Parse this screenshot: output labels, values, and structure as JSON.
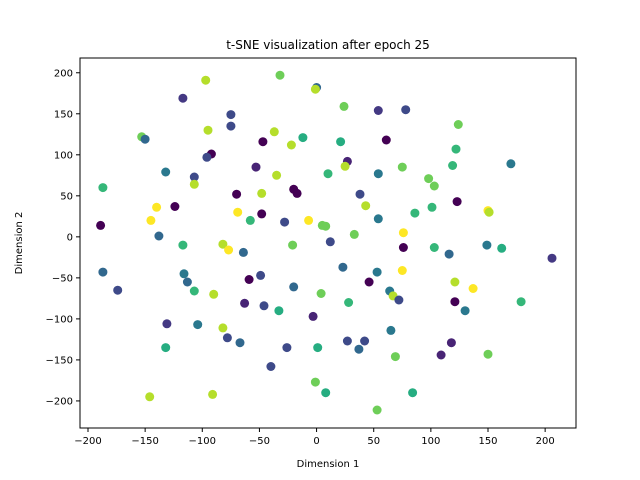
{
  "chart_data": {
    "type": "scatter",
    "title": "t-SNE visualization after epoch 25",
    "xlabel": "Dimension 1",
    "ylabel": "Dimension 2",
    "xlim": [
      -207,
      227
    ],
    "ylim": [
      -233,
      218
    ],
    "xticks": [
      -200,
      -150,
      -100,
      -50,
      0,
      50,
      100,
      150,
      200
    ],
    "yticks": [
      -200,
      -150,
      -100,
      -50,
      0,
      50,
      100,
      150,
      200
    ],
    "grid": false,
    "legend": "none",
    "points": [
      {
        "x": -97,
        "y": 191,
        "c": "#b5de2b"
      },
      {
        "x": -32,
        "y": 197,
        "c": "#6ece58"
      },
      {
        "x": 0,
        "y": 182,
        "c": "#31688e"
      },
      {
        "x": -1,
        "y": 180,
        "c": "#b5de2b"
      },
      {
        "x": -117,
        "y": 169,
        "c": "#443983"
      },
      {
        "x": 24,
        "y": 159,
        "c": "#6ece58"
      },
      {
        "x": -75,
        "y": 149,
        "c": "#3e4a89"
      },
      {
        "x": 54,
        "y": 154,
        "c": "#443983"
      },
      {
        "x": 78,
        "y": 155,
        "c": "#3e4a89"
      },
      {
        "x": -75,
        "y": 135,
        "c": "#3e4a89"
      },
      {
        "x": 124,
        "y": 137,
        "c": "#6ece58"
      },
      {
        "x": -95,
        "y": 130,
        "c": "#b5de2b"
      },
      {
        "x": -37,
        "y": 128,
        "c": "#b5de2b"
      },
      {
        "x": -153,
        "y": 122,
        "c": "#6ece58"
      },
      {
        "x": -150,
        "y": 119,
        "c": "#31688e"
      },
      {
        "x": -12,
        "y": 121,
        "c": "#26ad81"
      },
      {
        "x": -47,
        "y": 116,
        "c": "#440154"
      },
      {
        "x": -22,
        "y": 112,
        "c": "#b5de2b"
      },
      {
        "x": 21,
        "y": 116,
        "c": "#26ad81"
      },
      {
        "x": 61,
        "y": 118,
        "c": "#440154"
      },
      {
        "x": 122,
        "y": 107,
        "c": "#35b779"
      },
      {
        "x": -92,
        "y": 101,
        "c": "#440154"
      },
      {
        "x": -96,
        "y": 97,
        "c": "#3e4a89"
      },
      {
        "x": 27,
        "y": 92,
        "c": "#482475"
      },
      {
        "x": 25,
        "y": 86,
        "c": "#b5de2b"
      },
      {
        "x": -53,
        "y": 85,
        "c": "#482475"
      },
      {
        "x": 75,
        "y": 85,
        "c": "#6ece58"
      },
      {
        "x": 119,
        "y": 87,
        "c": "#35b779"
      },
      {
        "x": 170,
        "y": 89,
        "c": "#2a788e"
      },
      {
        "x": -132,
        "y": 79,
        "c": "#2a788e"
      },
      {
        "x": -35,
        "y": 75,
        "c": "#b5de2b"
      },
      {
        "x": 10,
        "y": 77,
        "c": "#35b779"
      },
      {
        "x": 54,
        "y": 77,
        "c": "#2a788e"
      },
      {
        "x": 98,
        "y": 71,
        "c": "#6ece58"
      },
      {
        "x": -107,
        "y": 73,
        "c": "#3e4a89"
      },
      {
        "x": -107,
        "y": 64,
        "c": "#b5de2b"
      },
      {
        "x": 103,
        "y": 62,
        "c": "#6ece58"
      },
      {
        "x": -187,
        "y": 60,
        "c": "#35b779"
      },
      {
        "x": -20,
        "y": 58,
        "c": "#440154"
      },
      {
        "x": -17,
        "y": 53,
        "c": "#440154"
      },
      {
        "x": -70,
        "y": 52,
        "c": "#440154"
      },
      {
        "x": -48,
        "y": 53,
        "c": "#b5de2b"
      },
      {
        "x": 38,
        "y": 52,
        "c": "#3e4a89"
      },
      {
        "x": 123,
        "y": 43,
        "c": "#440154"
      },
      {
        "x": 43,
        "y": 38,
        "c": "#b5de2b"
      },
      {
        "x": -124,
        "y": 37,
        "c": "#440154"
      },
      {
        "x": -140,
        "y": 36,
        "c": "#fde725"
      },
      {
        "x": 101,
        "y": 36,
        "c": "#35b779"
      },
      {
        "x": 150,
        "y": 32,
        "c": "#fde725"
      },
      {
        "x": -69,
        "y": 30,
        "c": "#fde725"
      },
      {
        "x": -48,
        "y": 28,
        "c": "#440154"
      },
      {
        "x": 86,
        "y": 29,
        "c": "#35b779"
      },
      {
        "x": 151,
        "y": 30,
        "c": "#b5de2b"
      },
      {
        "x": 54,
        "y": 22,
        "c": "#2a788e"
      },
      {
        "x": -145,
        "y": 20,
        "c": "#fde725"
      },
      {
        "x": -58,
        "y": 20,
        "c": "#35b779"
      },
      {
        "x": -28,
        "y": 18,
        "c": "#3e4a89"
      },
      {
        "x": -7,
        "y": 20,
        "c": "#fde725"
      },
      {
        "x": 5,
        "y": 14,
        "c": "#6ece58"
      },
      {
        "x": 8,
        "y": 13,
        "c": "#6ece58"
      },
      {
        "x": -189,
        "y": 14,
        "c": "#440154"
      },
      {
        "x": -138,
        "y": 1,
        "c": "#31688e"
      },
      {
        "x": 33,
        "y": 3,
        "c": "#6ece58"
      },
      {
        "x": 76,
        "y": 5,
        "c": "#fde725"
      },
      {
        "x": 12,
        "y": -6,
        "c": "#3e4a89"
      },
      {
        "x": -117,
        "y": -10,
        "c": "#35b779"
      },
      {
        "x": -82,
        "y": -9,
        "c": "#b5de2b"
      },
      {
        "x": -21,
        "y": -10,
        "c": "#6ece58"
      },
      {
        "x": 76,
        "y": -13,
        "c": "#440154"
      },
      {
        "x": 103,
        "y": -13,
        "c": "#35b779"
      },
      {
        "x": 149,
        "y": -10,
        "c": "#2a788e"
      },
      {
        "x": 162,
        "y": -14,
        "c": "#26ad81"
      },
      {
        "x": -77,
        "y": -16,
        "c": "#fde725"
      },
      {
        "x": -64,
        "y": -19,
        "c": "#31688e"
      },
      {
        "x": 116,
        "y": -21,
        "c": "#31688e"
      },
      {
        "x": 206,
        "y": -26,
        "c": "#443983"
      },
      {
        "x": 23,
        "y": -37,
        "c": "#31688e"
      },
      {
        "x": -187,
        "y": -43,
        "c": "#31688e"
      },
      {
        "x": -116,
        "y": -45,
        "c": "#2a788e"
      },
      {
        "x": -49,
        "y": -47,
        "c": "#3e4a89"
      },
      {
        "x": 53,
        "y": -43,
        "c": "#2a788e"
      },
      {
        "x": 75,
        "y": -41,
        "c": "#fde725"
      },
      {
        "x": -59,
        "y": -52,
        "c": "#440154"
      },
      {
        "x": -113,
        "y": -55,
        "c": "#31688e"
      },
      {
        "x": 46,
        "y": -55,
        "c": "#440154"
      },
      {
        "x": 121,
        "y": -55,
        "c": "#b5de2b"
      },
      {
        "x": -174,
        "y": -65,
        "c": "#3e4a89"
      },
      {
        "x": -20,
        "y": -61,
        "c": "#31688e"
      },
      {
        "x": 137,
        "y": -63,
        "c": "#fde725"
      },
      {
        "x": -107,
        "y": -66,
        "c": "#35b779"
      },
      {
        "x": 64,
        "y": -66,
        "c": "#2a788e"
      },
      {
        "x": -90,
        "y": -70,
        "c": "#b5de2b"
      },
      {
        "x": 4,
        "y": -69,
        "c": "#6ece58"
      },
      {
        "x": 67,
        "y": -72,
        "c": "#b5de2b"
      },
      {
        "x": 72,
        "y": -77,
        "c": "#3e4a89"
      },
      {
        "x": 121,
        "y": -79,
        "c": "#440154"
      },
      {
        "x": 179,
        "y": -79,
        "c": "#35b779"
      },
      {
        "x": -63,
        "y": -81,
        "c": "#482475"
      },
      {
        "x": -46,
        "y": -84,
        "c": "#3e4a89"
      },
      {
        "x": -33,
        "y": -90,
        "c": "#26ad81"
      },
      {
        "x": 28,
        "y": -80,
        "c": "#35b779"
      },
      {
        "x": -3,
        "y": -97,
        "c": "#482475"
      },
      {
        "x": 130,
        "y": -90,
        "c": "#2a788e"
      },
      {
        "x": -131,
        "y": -106,
        "c": "#443983"
      },
      {
        "x": -104,
        "y": -107,
        "c": "#2a788e"
      },
      {
        "x": -82,
        "y": -111,
        "c": "#b5de2b"
      },
      {
        "x": 65,
        "y": -114,
        "c": "#2a788e"
      },
      {
        "x": -78,
        "y": -123,
        "c": "#3e4a89"
      },
      {
        "x": -67,
        "y": -129,
        "c": "#31688e"
      },
      {
        "x": 27,
        "y": -127,
        "c": "#3e4a89"
      },
      {
        "x": 42,
        "y": -127,
        "c": "#3e4a89"
      },
      {
        "x": 118,
        "y": -129,
        "c": "#482475"
      },
      {
        "x": -132,
        "y": -135,
        "c": "#26ad81"
      },
      {
        "x": -26,
        "y": -135,
        "c": "#3e4a89"
      },
      {
        "x": 1,
        "y": -135,
        "c": "#26ad81"
      },
      {
        "x": 37,
        "y": -137,
        "c": "#31688e"
      },
      {
        "x": 109,
        "y": -144,
        "c": "#482475"
      },
      {
        "x": 69,
        "y": -146,
        "c": "#6ece58"
      },
      {
        "x": 150,
        "y": -143,
        "c": "#6ece58"
      },
      {
        "x": -40,
        "y": -158,
        "c": "#3e4a89"
      },
      {
        "x": -1,
        "y": -177,
        "c": "#6ece58"
      },
      {
        "x": 8,
        "y": -190,
        "c": "#26ad81"
      },
      {
        "x": 84,
        "y": -190,
        "c": "#26ad81"
      },
      {
        "x": -146,
        "y": -195,
        "c": "#b5de2b"
      },
      {
        "x": -91,
        "y": -192,
        "c": "#b5de2b"
      },
      {
        "x": 53,
        "y": -211,
        "c": "#6ece58"
      }
    ]
  }
}
